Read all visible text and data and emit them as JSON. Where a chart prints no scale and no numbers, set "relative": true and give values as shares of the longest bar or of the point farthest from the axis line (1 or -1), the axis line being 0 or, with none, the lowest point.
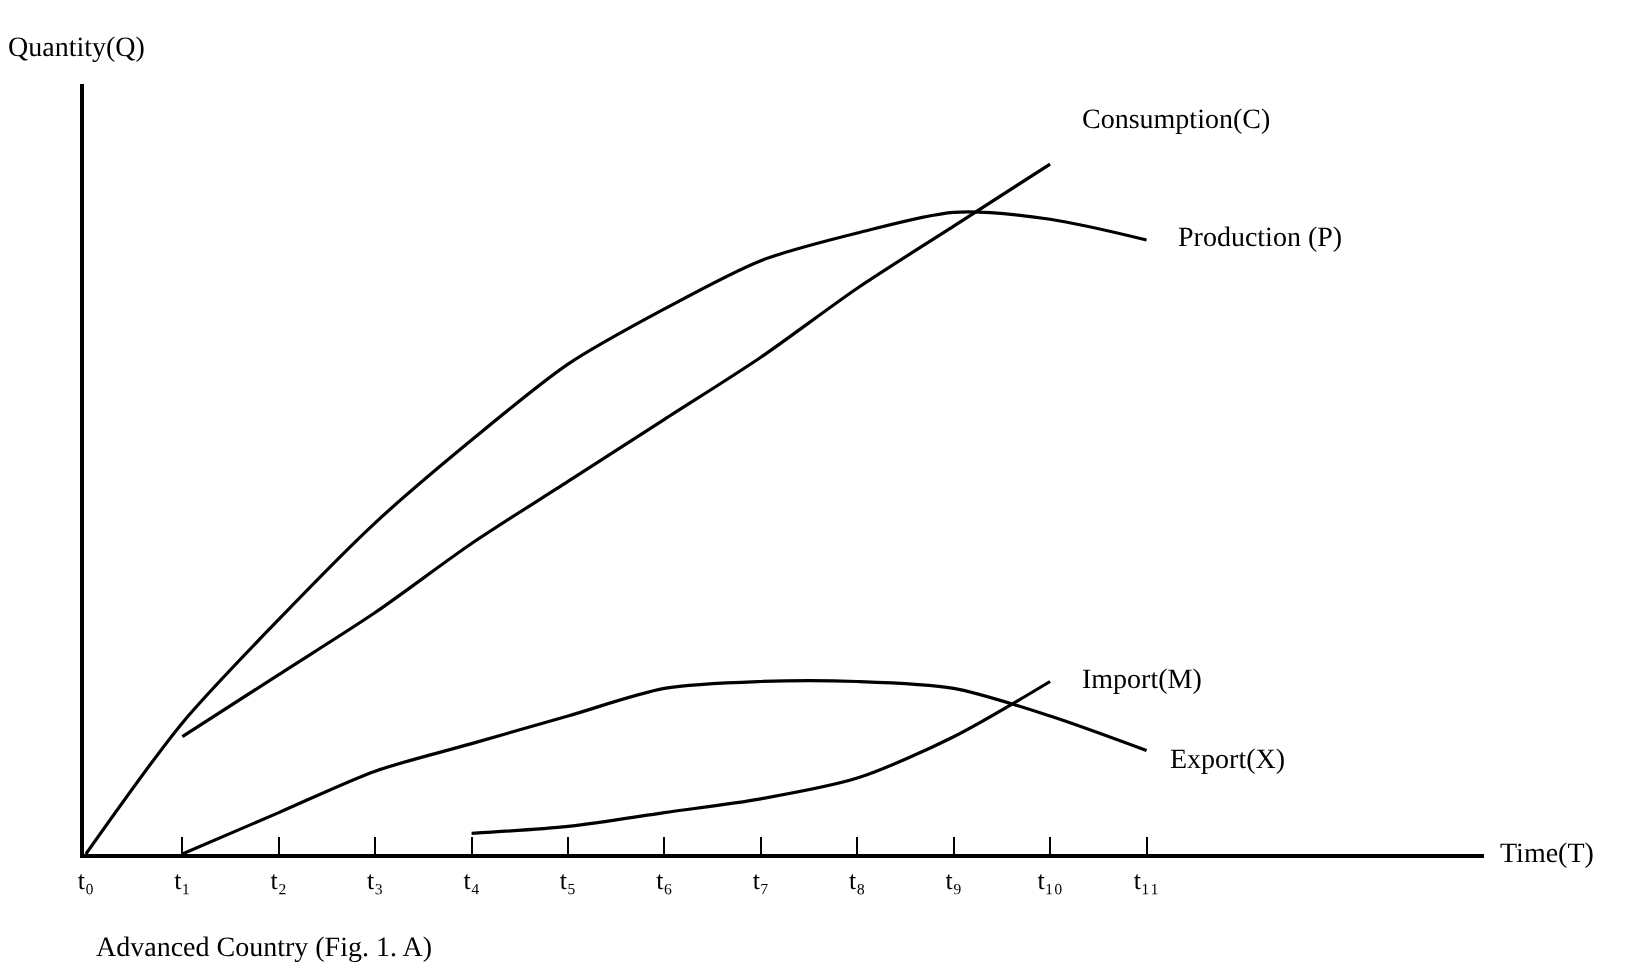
{
  "chart_data": {
    "type": "line",
    "relative": true,
    "xlabel": "Time(T)",
    "ylabel": "Quantity(Q)",
    "categories": [
      "t₀",
      "t₁",
      "t₂",
      "t₃",
      "t₄",
      "t₅",
      "t₆",
      "t₇",
      "t₈",
      "t₉",
      "t₁₀",
      "t₁₁",
      null,
      null,
      null
    ],
    "legend": false,
    "marker": "none",
    "line_style": "solid",
    "series": [
      {
        "name": "Consumption(C)",
        "color": "#000000",
        "values": [
          null,
          0.17,
          0.26,
          0.35,
          0.45,
          0.54,
          0.63,
          0.72,
          0.82,
          0.91,
          1.0,
          null,
          null,
          null,
          null
        ]
      },
      {
        "name": "Production (P)",
        "color": "#000000",
        "values": [
          0,
          0.19,
          0.34,
          0.48,
          0.6,
          0.71,
          0.79,
          0.86,
          0.9,
          0.93,
          0.92,
          0.89,
          null,
          null,
          null
        ]
      },
      {
        "name": "Import(M)",
        "color": "#000000",
        "values": [
          null,
          null,
          null,
          null,
          0.03,
          0.04,
          0.06,
          0.08,
          0.11,
          0.17,
          0.25,
          null,
          null,
          null,
          null
        ]
      },
      {
        "name": "Export(X)",
        "color": "#000000",
        "values": [
          null,
          0,
          0.06,
          0.12,
          0.16,
          0.2,
          0.24,
          0.25,
          0.25,
          0.24,
          0.2,
          0.15,
          null,
          null,
          null
        ]
      }
    ],
    "annotations": [
      "Advanced Country (Fig. 1. A)"
    ]
  }
}
